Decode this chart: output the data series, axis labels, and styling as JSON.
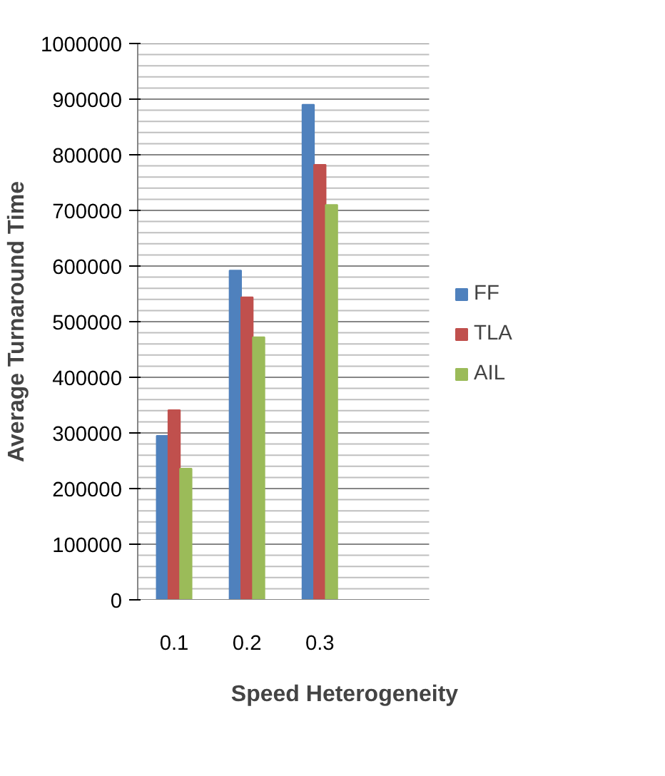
{
  "chart_data": {
    "type": "bar",
    "xlabel": "Speed Heterogeneity",
    "ylabel": "Average Turnaround Time",
    "categories": [
      "0.1",
      "0.2",
      "0.3",
      null
    ],
    "series": [
      {
        "name": "FF",
        "color": "#4f81bd",
        "values": [
          295000,
          592000,
          890000,
          null
        ]
      },
      {
        "name": "TLA",
        "color": "#c0504d",
        "values": [
          341000,
          544000,
          782000,
          null
        ]
      },
      {
        "name": "AIL",
        "color": "#9bbb59",
        "values": [
          236000,
          472000,
          710000,
          null
        ]
      }
    ],
    "ylim": [
      0,
      1000000
    ],
    "yticks": [
      0,
      100000,
      200000,
      300000,
      400000,
      500000,
      600000,
      700000,
      800000,
      900000,
      1000000
    ],
    "grid": "y",
    "legend": "right"
  }
}
